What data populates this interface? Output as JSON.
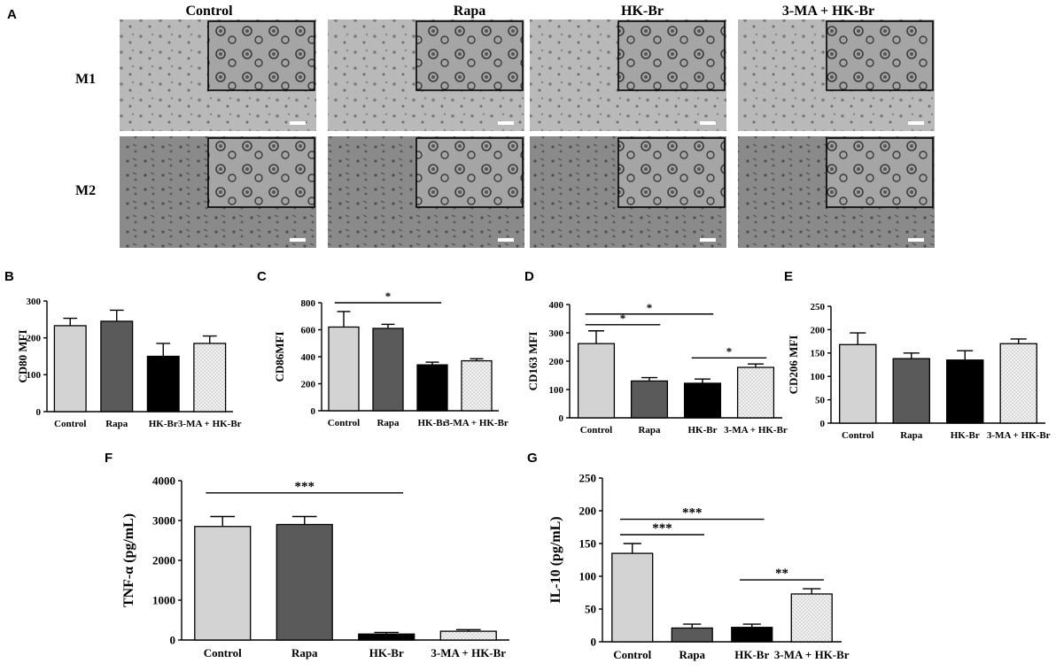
{
  "figure": {
    "panels": {
      "A": "A",
      "B": "B",
      "C": "C",
      "D": "D",
      "E": "E",
      "F": "F",
      "G": "G"
    },
    "micrograph": {
      "columns": [
        "Control",
        "Rapa",
        "HK-Br",
        "3-MA + HK-Br"
      ],
      "rows": [
        "M1",
        "M2"
      ]
    }
  },
  "colors": {
    "control": "#d3d3d3",
    "rapa": "#5a5a5a",
    "hkbr": "#000000",
    "ma_hkbr": "#f0f0f0",
    "micrograph_bg": "#a9a9a9"
  },
  "chart_data": [
    {
      "panel": "B",
      "type": "bar",
      "categories": [
        "Control",
        "Rapa",
        "HK-Br",
        "3-MA + HK-Br"
      ],
      "values": [
        233,
        245,
        150,
        185
      ],
      "errors": [
        20,
        30,
        35,
        20
      ],
      "ylabel": "CD80 MFI",
      "ylim": [
        0,
        300
      ],
      "yticks": [
        0,
        100,
        200,
        300
      ],
      "significance": []
    },
    {
      "panel": "C",
      "type": "bar",
      "categories": [
        "Control",
        "Rapa",
        "HK-Br",
        "3-MA + HK-Br"
      ],
      "values": [
        620,
        610,
        340,
        370
      ],
      "errors": [
        115,
        30,
        20,
        15
      ],
      "ylabel": "CD86MFI",
      "ylim": [
        0,
        800
      ],
      "yticks": [
        0,
        200,
        400,
        600,
        800
      ],
      "significance": [
        {
          "from": 0,
          "to": 2,
          "label": "*",
          "level": 1
        }
      ]
    },
    {
      "panel": "D",
      "type": "bar",
      "categories": [
        "Control",
        "Rapa",
        "HK-Br",
        "3-MA + HK-Br"
      ],
      "values": [
        262,
        130,
        122,
        178
      ],
      "errors": [
        45,
        12,
        15,
        12
      ],
      "ylabel": "CD163 MFI",
      "ylim": [
        0,
        400
      ],
      "yticks": [
        0,
        100,
        200,
        300,
        400
      ],
      "significance": [
        {
          "from": 0,
          "to": 1,
          "label": "*",
          "level": 0
        },
        {
          "from": 0,
          "to": 2,
          "label": "*",
          "level": 1
        },
        {
          "from": 2,
          "to": 3,
          "label": "*",
          "level": 0
        }
      ]
    },
    {
      "panel": "E",
      "type": "bar",
      "categories": [
        "Control",
        "Rapa",
        "HK-Br",
        "3-MA + HK-Br"
      ],
      "values": [
        168,
        138,
        135,
        170
      ],
      "errors": [
        25,
        12,
        20,
        10
      ],
      "ylabel": "CD206 MFI",
      "ylim": [
        0,
        250
      ],
      "yticks": [
        0,
        50,
        100,
        150,
        200,
        250
      ],
      "significance": []
    },
    {
      "panel": "F",
      "type": "bar",
      "categories": [
        "Control",
        "Rapa",
        "HK-Br",
        "3-MA + HK-Br"
      ],
      "values": [
        2850,
        2900,
        150,
        220
      ],
      "errors": [
        250,
        200,
        40,
        40
      ],
      "ylabel": "TNF-α (pg/mL)",
      "ylim": [
        0,
        4000
      ],
      "yticks": [
        0,
        1000,
        2000,
        3000,
        4000
      ],
      "significance": [
        {
          "from": 0,
          "to": 2,
          "label": "***",
          "level": 1
        }
      ]
    },
    {
      "panel": "G",
      "type": "bar",
      "categories": [
        "Control",
        "Rapa",
        "HK-Br",
        "3-MA + HK-Br"
      ],
      "values": [
        135,
        21,
        22,
        73
      ],
      "errors": [
        15,
        6,
        5,
        8
      ],
      "ylabel": "IL-10 (pg/mL)",
      "ylim": [
        0,
        250
      ],
      "yticks": [
        0,
        50,
        100,
        150,
        200,
        250
      ],
      "significance": [
        {
          "from": 0,
          "to": 1,
          "label": "***",
          "level": 0
        },
        {
          "from": 0,
          "to": 2,
          "label": "***",
          "level": 1
        },
        {
          "from": 2,
          "to": 3,
          "label": "**",
          "level": 0
        }
      ]
    }
  ]
}
